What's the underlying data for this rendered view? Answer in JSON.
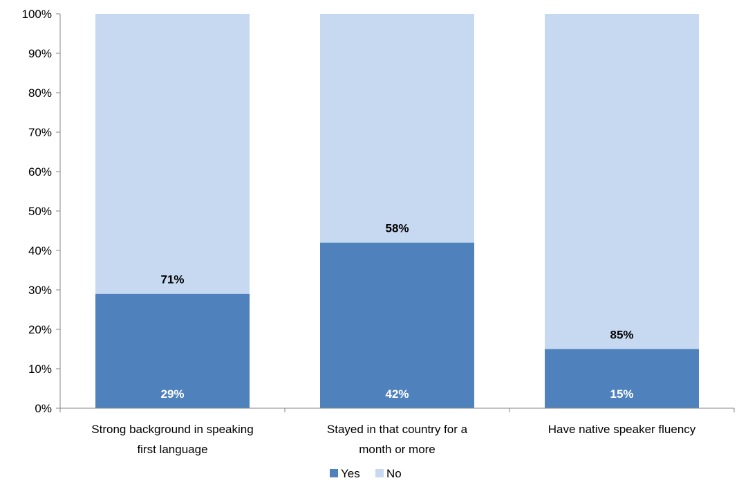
{
  "chart_data": {
    "type": "bar",
    "stacked": true,
    "categories": [
      [
        "Strong background in speaking",
        "first language"
      ],
      [
        "Stayed in that country for a",
        "month or more"
      ],
      [
        "Have native speaker fluency"
      ]
    ],
    "series": [
      {
        "name": "Yes",
        "values": [
          29,
          42,
          15
        ],
        "color": "#4f81bd",
        "label_color": "#ffffff",
        "labels": [
          "29%",
          "42%",
          "15%"
        ]
      },
      {
        "name": "No",
        "values": [
          71,
          58,
          85
        ],
        "color": "#c6d9f1",
        "label_color": "#000000",
        "labels": [
          "71%",
          "58%",
          "85%"
        ]
      }
    ],
    "y_ticks": [
      "0%",
      "10%",
      "20%",
      "30%",
      "40%",
      "50%",
      "60%",
      "70%",
      "80%",
      "90%",
      "100%"
    ],
    "ylim": [
      0,
      100
    ],
    "grid": false,
    "legend": "bottom"
  }
}
